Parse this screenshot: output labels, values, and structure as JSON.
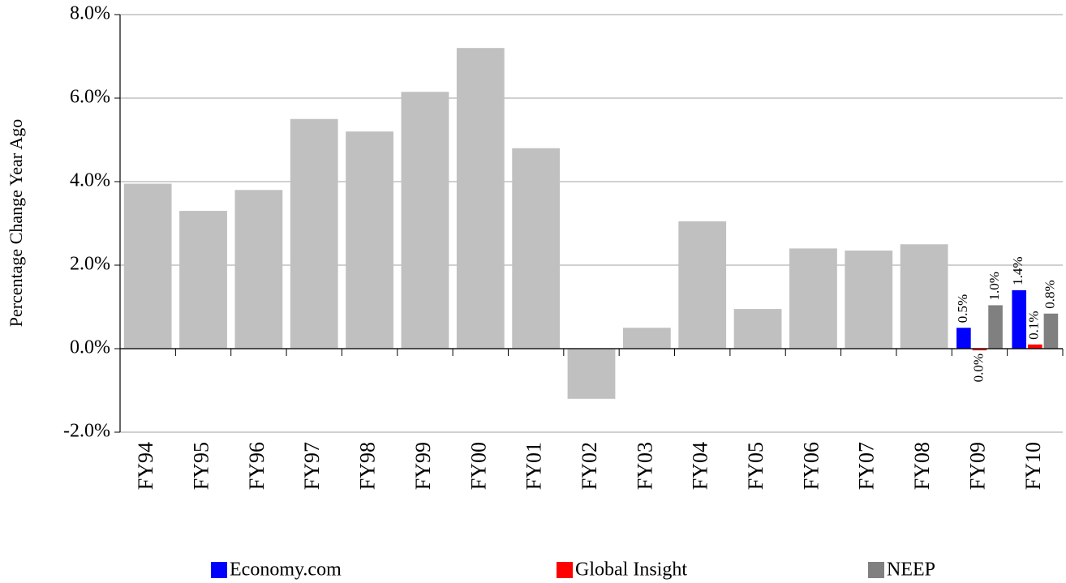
{
  "chart_data": {
    "type": "bar",
    "y_label": "Percentage Change Year Ago",
    "categories": [
      "FY94",
      "FY95",
      "FY96",
      "FY97",
      "FY98",
      "FY99",
      "FY00",
      "FY01",
      "FY02",
      "FY03",
      "FY04",
      "FY05",
      "FY06",
      "FY07",
      "FY08",
      "FY09",
      "FY10"
    ],
    "series": [
      {
        "color": "#c0c0c0",
        "values": [
          3.95,
          3.3,
          3.8,
          5.5,
          5.2,
          6.15,
          7.2,
          4.8,
          -1.2,
          0.5,
          3.05,
          0.95,
          2.4,
          2.35,
          2.5,
          null,
          null
        ]
      },
      {
        "name": "Economy.com",
        "color": "#0000ff",
        "values": [
          null,
          null,
          null,
          null,
          null,
          null,
          null,
          null,
          null,
          null,
          null,
          null,
          null,
          null,
          null,
          0.5,
          1.4
        ],
        "value_labels": [
          null,
          null,
          null,
          null,
          null,
          null,
          null,
          null,
          null,
          null,
          null,
          null,
          null,
          null,
          null,
          "0.5%",
          "1.4%"
        ]
      },
      {
        "name": "Global Insight",
        "color": "#ff0000",
        "values": [
          null,
          null,
          null,
          null,
          null,
          null,
          null,
          null,
          null,
          null,
          null,
          null,
          null,
          null,
          null,
          -0.04,
          0.1
        ],
        "value_labels": [
          null,
          null,
          null,
          null,
          null,
          null,
          null,
          null,
          null,
          null,
          null,
          null,
          null,
          null,
          null,
          "0.0%",
          "0.1%"
        ]
      },
      {
        "name": "NEEP",
        "color": "#808080",
        "values": [
          null,
          null,
          null,
          null,
          null,
          null,
          null,
          null,
          null,
          null,
          null,
          null,
          null,
          null,
          null,
          1.04,
          0.84
        ],
        "value_labels": [
          null,
          null,
          null,
          null,
          null,
          null,
          null,
          null,
          null,
          null,
          null,
          null,
          null,
          null,
          null,
          "1.0%",
          "0.8%"
        ]
      }
    ],
    "ylim": [
      -2,
      8
    ],
    "yticks": [
      {
        "value": -2,
        "label": "-2.0%"
      },
      {
        "value": 0,
        "label": "0.0%"
      },
      {
        "value": 2,
        "label": "2.0%"
      },
      {
        "value": 4,
        "label": "4.0%"
      },
      {
        "value": 6,
        "label": "6.0%"
      },
      {
        "value": 8,
        "label": "8.0%"
      }
    ],
    "grid": true
  }
}
